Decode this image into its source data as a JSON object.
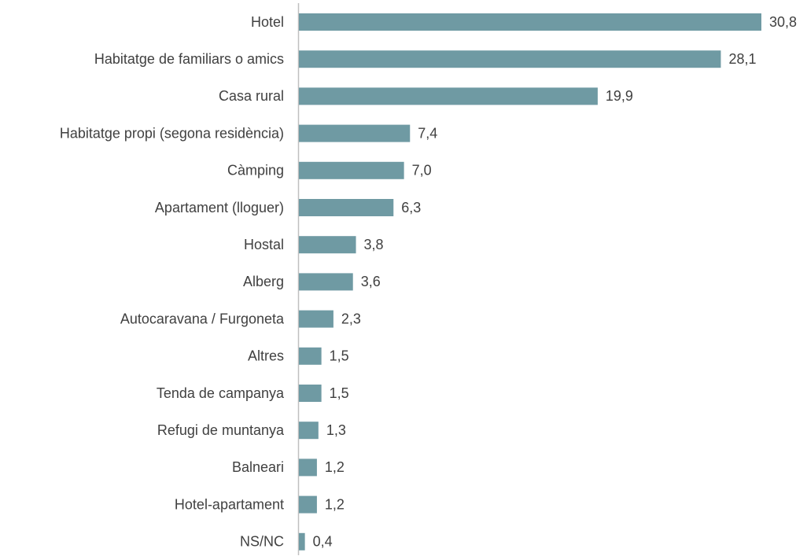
{
  "chart_data": {
    "type": "bar",
    "orientation": "horizontal",
    "color": "#6f9aa3",
    "categories": [
      "Hotel",
      "Habitatge de familiars o amics",
      "Casa rural",
      "Habitatge propi (segona residència)",
      "Càmping",
      "Apartament (lloguer)",
      "Hostal",
      "Alberg",
      "Autocaravana / Furgoneta",
      "Altres",
      "Tenda de campanya",
      "Refugi de muntanya",
      "Balneari",
      "Hotel-apartament",
      "NS/NC"
    ],
    "values": [
      30.8,
      28.1,
      19.9,
      7.4,
      7.0,
      6.3,
      3.8,
      3.6,
      2.3,
      1.5,
      1.5,
      1.3,
      1.2,
      1.2,
      0.4
    ],
    "value_labels": [
      "30,8",
      "28,1",
      "19,9",
      "7,4",
      "7,0",
      "6,3",
      "3,8",
      "3,6",
      "2,3",
      "1,5",
      "1,5",
      "1,3",
      "1,2",
      "1,2",
      "0,4"
    ]
  }
}
